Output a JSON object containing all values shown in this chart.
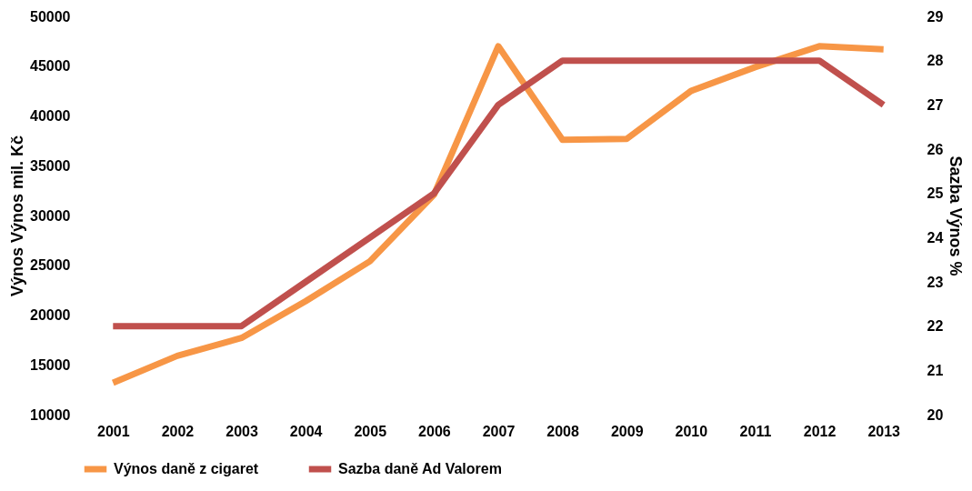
{
  "chart_data": {
    "type": "line",
    "categories": [
      "2001",
      "2002",
      "2003",
      "2004",
      "2005",
      "2006",
      "2007",
      "2008",
      "2009",
      "2010",
      "2011",
      "2012",
      "2013"
    ],
    "ylabel": "Výnos Výnos  mil. Kč",
    "y2label": "Sazba Výnos  %",
    "ylim": [
      10000,
      50000
    ],
    "yticks": [
      10000,
      15000,
      20000,
      25000,
      30000,
      35000,
      40000,
      45000,
      50000
    ],
    "y2lim": [
      20,
      29
    ],
    "y2ticks": [
      20,
      21,
      22,
      23,
      24,
      25,
      26,
      27,
      28,
      29
    ],
    "series": [
      {
        "name": "Výnos daně z cigaret",
        "color": "#f79646",
        "values": [
          13200,
          15900,
          17700,
          21400,
          25400,
          32100,
          47000,
          37600,
          37700,
          42500,
          44900,
          47000,
          46700
        ]
      },
      {
        "name": "Sazba daně Ad Valorem",
        "color": "#c0504d",
        "axis": "y2",
        "values": [
          22,
          22,
          22,
          23,
          24,
          25,
          27,
          28,
          28,
          28,
          28,
          28,
          27
        ]
      }
    ],
    "grid": false,
    "legend": "bottom",
    "marker": "none",
    "line_style": "solid"
  }
}
